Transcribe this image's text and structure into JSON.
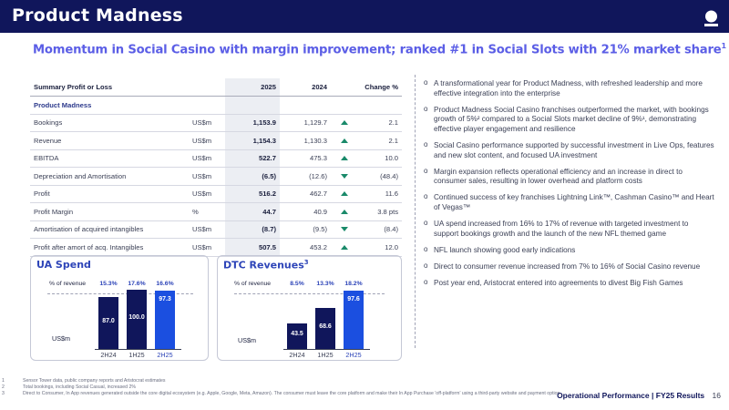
{
  "header": {
    "title": "Product Madness"
  },
  "subtitle": "Momentum in Social Casino with margin improvement; ranked #1 in Social Slots with 21% market share",
  "subtitle_sup": "1",
  "table": {
    "headers": {
      "label": "Summary Profit or Loss",
      "y2025": "2025",
      "y2024": "2024",
      "change": "Change %"
    },
    "section": "Product Madness",
    "rows": [
      {
        "label": "Bookings",
        "unit": "US$m",
        "v2025": "1,153.9",
        "v2024": "1,129.7",
        "dir": "up",
        "change": "2.1"
      },
      {
        "label": "Revenue",
        "unit": "US$m",
        "v2025": "1,154.3",
        "v2024": "1,130.3",
        "dir": "up",
        "change": "2.1"
      },
      {
        "label": "EBITDA",
        "unit": "US$m",
        "v2025": "522.7",
        "v2024": "475.3",
        "dir": "up",
        "change": "10.0"
      },
      {
        "label": "Depreciation and Amortisation",
        "unit": "US$m",
        "v2025": "(6.5)",
        "v2024": "(12.6)",
        "dir": "down",
        "change": "(48.4)"
      },
      {
        "label": "Profit",
        "unit": "US$m",
        "v2025": "516.2",
        "v2024": "462.7",
        "dir": "up",
        "change": "11.6"
      },
      {
        "label": "Profit Margin",
        "unit": "%",
        "v2025": "44.7",
        "v2024": "40.9",
        "dir": "up",
        "change": "3.8 pts"
      },
      {
        "label": "Amortisation of acquired intangibles",
        "unit": "US$m",
        "v2025": "(8.7)",
        "v2024": "(9.5)",
        "dir": "down",
        "change": "(8.4)"
      },
      {
        "label": "Profit after amort of acq. Intangibles",
        "unit": "US$m",
        "v2025": "507.5",
        "v2024": "453.2",
        "dir": "up",
        "change": "12.0"
      }
    ]
  },
  "bullets": [
    "A transformational year for Product Madness, with refreshed leadership and more effective integration into the enterprise",
    "Product Madness Social Casino franchises outperformed the market, with bookings growth of 5%² compared to a Social Slots market decline of 9%¹, demonstrating effective player engagement and resilience",
    "Social Casino performance supported by successful investment in Live Ops, features and new slot content, and focused UA investment",
    "Margin expansion reflects operational efficiency and an increase in direct to consumer sales, resulting in lower overhead and platform costs",
    "Continued success of key franchises Lightning Link™, Cashman Casino™ and Heart of Vegas™",
    "UA spend increased from 16% to 17% of revenue with targeted investment to support bookings growth and the launch of the new NFL themed game",
    "NFL launch showing good early indications",
    "Direct to consumer revenue increased from 7% to 16% of Social Casino revenue",
    "Post year end, Aristocrat entered into agreements to divest Big Fish Games"
  ],
  "colors": {
    "navy": "#10165b",
    "blue": "#1b4fe0",
    "accent": "#5b5ee6",
    "arrow": "#1a8a6a"
  },
  "chart_data": [
    {
      "type": "bar",
      "title": "UA Spend",
      "unit_label": "US$m",
      "pct_label": "% of revenue",
      "categories": [
        "2H24",
        "1H25",
        "2H25"
      ],
      "values": [
        87.0,
        100.0,
        97.3
      ],
      "value_labels": [
        "87.0",
        "100.0",
        "97.3"
      ],
      "pct_values": [
        "15.3%",
        "17.6%",
        "16.6%"
      ],
      "ylim": [
        0,
        110
      ]
    },
    {
      "type": "bar",
      "title": "DTC Revenues",
      "title_sup": "3",
      "unit_label": "US$m",
      "pct_label": "% of revenue",
      "categories": [
        "2H24",
        "1H25",
        "2H25"
      ],
      "values": [
        43.5,
        68.6,
        97.6
      ],
      "value_labels": [
        "43.5",
        "68.6",
        "97.6"
      ],
      "pct_values": [
        "8.5%",
        "13.3%",
        "18.2%"
      ],
      "ylim": [
        0,
        110
      ]
    }
  ],
  "footnotes": [
    {
      "n": "1",
      "text": "Sensor Tower data, public company reports and Aristocrat estimates"
    },
    {
      "n": "2",
      "text": "Total bookings, including Social Casual, increased 2%"
    },
    {
      "n": "3",
      "text": "Direct to Consumer, In App revenues generated outside the core digital ecosystem (e.g. Apple, Google, Meta, Amazon). The consumer must leave the core platform and make their In App Purchase 'off-platform' using a third-party website and payment option"
    }
  ],
  "footer": {
    "section": "Operational Performance",
    "sep": "|",
    "report": "FY25 Results",
    "page": "16"
  }
}
